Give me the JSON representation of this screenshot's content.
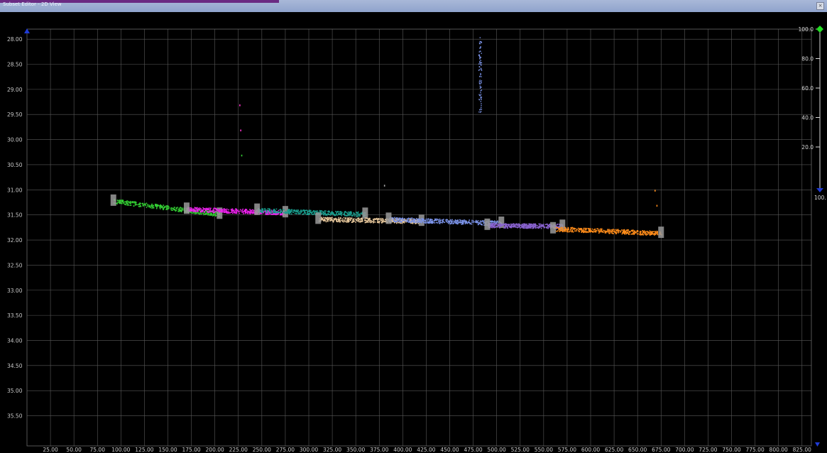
{
  "window": {
    "title": "Subset Editor - 2D View",
    "accent_color": "#6a2a82",
    "close_icon": "close-icon"
  },
  "plot": {
    "background": "#000000",
    "grid_color": "#5a5a5a",
    "y_tick_labels": [
      "28.00",
      "28.50",
      "29.00",
      "29.50",
      "30.00",
      "30.50",
      "31.00",
      "31.50",
      "32.00",
      "32.50",
      "33.00",
      "33.50",
      "34.00",
      "34.50",
      "35.00",
      "35.50"
    ],
    "x_tick_labels": [
      "25.00",
      "50.00",
      "75.00",
      "100.00",
      "125.00",
      "150.00",
      "175.00",
      "200.00",
      "225.00",
      "250.00",
      "275.00",
      "300.00",
      "325.00",
      "350.00",
      "375.00",
      "400.00",
      "425.00",
      "450.00",
      "475.00",
      "500.00",
      "525.00",
      "550.00",
      "575.00",
      "600.00",
      "625.00",
      "650.00",
      "675.00",
      "700.00",
      "725.00",
      "750.00",
      "775.00",
      "800.00",
      "825.00"
    ],
    "y_range": [
      27.8,
      36.1
    ],
    "x_range": [
      0,
      835
    ],
    "segments": [
      {
        "color": "#33cc33",
        "x": [
          92,
          205
        ],
        "y": [
          31.22,
          31.48
        ]
      },
      {
        "color": "#ee22ee",
        "x": [
          170,
          275
        ],
        "y": [
          31.38,
          31.45
        ]
      },
      {
        "color": "#1a9e8e",
        "x": [
          245,
          360
        ],
        "y": [
          31.4,
          31.48
        ]
      },
      {
        "color": "#e8c89c",
        "x": [
          310,
          420
        ],
        "y": [
          31.58,
          31.62
        ]
      },
      {
        "color": "#7b93e8",
        "x": [
          385,
          505
        ],
        "y": [
          31.58,
          31.66
        ]
      },
      {
        "color": "#8a63d0",
        "x": [
          490,
          570
        ],
        "y": [
          31.7,
          31.72
        ]
      },
      {
        "color": "#ff8c1a",
        "x": [
          560,
          675
        ],
        "y": [
          31.77,
          31.86
        ]
      }
    ],
    "outlier_cluster": {
      "color": "#7b93e8",
      "x": 482,
      "y": [
        27.95,
        29.45
      ]
    },
    "outlier_points": [
      {
        "color": "#ff33cc",
        "x": 226,
        "y": 29.3
      },
      {
        "color": "#ff33cc",
        "x": 227,
        "y": 29.8
      },
      {
        "color": "#33cc33",
        "x": 228,
        "y": 30.3
      },
      {
        "color": "#aaaaaa",
        "x": 380,
        "y": 30.9
      },
      {
        "color": "#ff8c1a",
        "x": 668,
        "y": 31.0
      },
      {
        "color": "#ff8c1a",
        "x": 670,
        "y": 31.3
      }
    ]
  },
  "gauge": {
    "labels": [
      "100.0",
      "80.0",
      "60.0",
      "40.0",
      "20.0"
    ],
    "bottom_label": "100.",
    "top_marker_color": "#22dd22",
    "bottom_marker_color": "#1f3bd6"
  }
}
